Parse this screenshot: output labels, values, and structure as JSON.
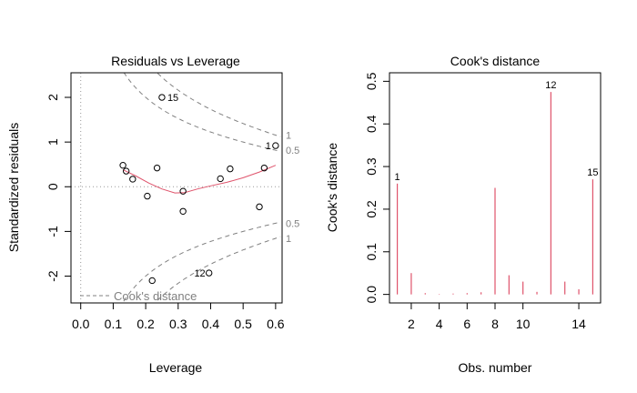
{
  "chart_data": [
    {
      "type": "scatter",
      "title": "Residuals vs Leverage",
      "xlabel": "Leverage",
      "ylabel": "Standardized residuals",
      "xlim": [
        -0.03,
        0.62
      ],
      "ylim": [
        -2.6,
        2.55
      ],
      "xticks": [
        "0.0",
        "0.1",
        "0.2",
        "0.3",
        "0.4",
        "0.5",
        "0.6"
      ],
      "yticks": [
        "-2",
        "-1",
        "0",
        "1",
        "2"
      ],
      "points": [
        {
          "x": 0.13,
          "y": 0.48
        },
        {
          "x": 0.14,
          "y": 0.35
        },
        {
          "x": 0.16,
          "y": 0.17
        },
        {
          "x": 0.205,
          "y": -0.21
        },
        {
          "x": 0.22,
          "y": -2.1
        },
        {
          "x": 0.235,
          "y": 0.42
        },
        {
          "x": 0.25,
          "y": 2.0,
          "label": "15"
        },
        {
          "x": 0.315,
          "y": -0.1
        },
        {
          "x": 0.315,
          "y": -0.55
        },
        {
          "x": 0.395,
          "y": -1.93,
          "label": "12"
        },
        {
          "x": 0.43,
          "y": 0.18
        },
        {
          "x": 0.46,
          "y": 0.4
        },
        {
          "x": 0.55,
          "y": -0.45
        },
        {
          "x": 0.565,
          "y": 0.42
        },
        {
          "x": 0.6,
          "y": 0.92,
          "label": "1"
        }
      ],
      "smooth": [
        {
          "x": 0.13,
          "y": 0.38
        },
        {
          "x": 0.17,
          "y": 0.24
        },
        {
          "x": 0.21,
          "y": 0.08
        },
        {
          "x": 0.25,
          "y": -0.05
        },
        {
          "x": 0.29,
          "y": -0.14
        },
        {
          "x": 0.32,
          "y": -0.13
        },
        {
          "x": 0.36,
          "y": -0.05
        },
        {
          "x": 0.4,
          "y": 0.02
        },
        {
          "x": 0.45,
          "y": 0.1
        },
        {
          "x": 0.5,
          "y": 0.2
        },
        {
          "x": 0.55,
          "y": 0.33
        },
        {
          "x": 0.6,
          "y": 0.48
        }
      ],
      "cook_contour_labels": [
        "1",
        "0.5",
        "0.5",
        "1"
      ],
      "legend": "Cook's distance",
      "legend_position": "bottom-left",
      "colors": {
        "points": "#000000",
        "smooth": "#DF536B",
        "contour": "#808080",
        "reference": "#999999"
      }
    },
    {
      "type": "bar",
      "title": "Cook's distance",
      "xlabel": "Obs. number",
      "ylabel": "Cook's distance",
      "xlim": [
        0.44,
        15.56
      ],
      "ylim": [
        -0.02,
        0.52
      ],
      "xticks": [
        "2",
        "4",
        "6",
        "8",
        "10",
        "14"
      ],
      "xtick_values": [
        2,
        4,
        6,
        8,
        10,
        14
      ],
      "yticks": [
        "0.0",
        "0.1",
        "0.2",
        "0.3",
        "0.4",
        "0.5"
      ],
      "x": [
        1,
        2,
        3,
        4,
        5,
        6,
        7,
        8,
        9,
        10,
        11,
        12,
        13,
        14,
        15
      ],
      "values": [
        0.26,
        0.05,
        0.003,
        0.001,
        0.002,
        0.003,
        0.005,
        0.25,
        0.045,
        0.03,
        0.006,
        0.475,
        0.03,
        0.012,
        0.27
      ],
      "labels": [
        {
          "x": 1,
          "text": "1"
        },
        {
          "x": 12,
          "text": "12"
        },
        {
          "x": 15,
          "text": "15"
        }
      ],
      "colors": {
        "bars": "#DF536B"
      }
    }
  ]
}
